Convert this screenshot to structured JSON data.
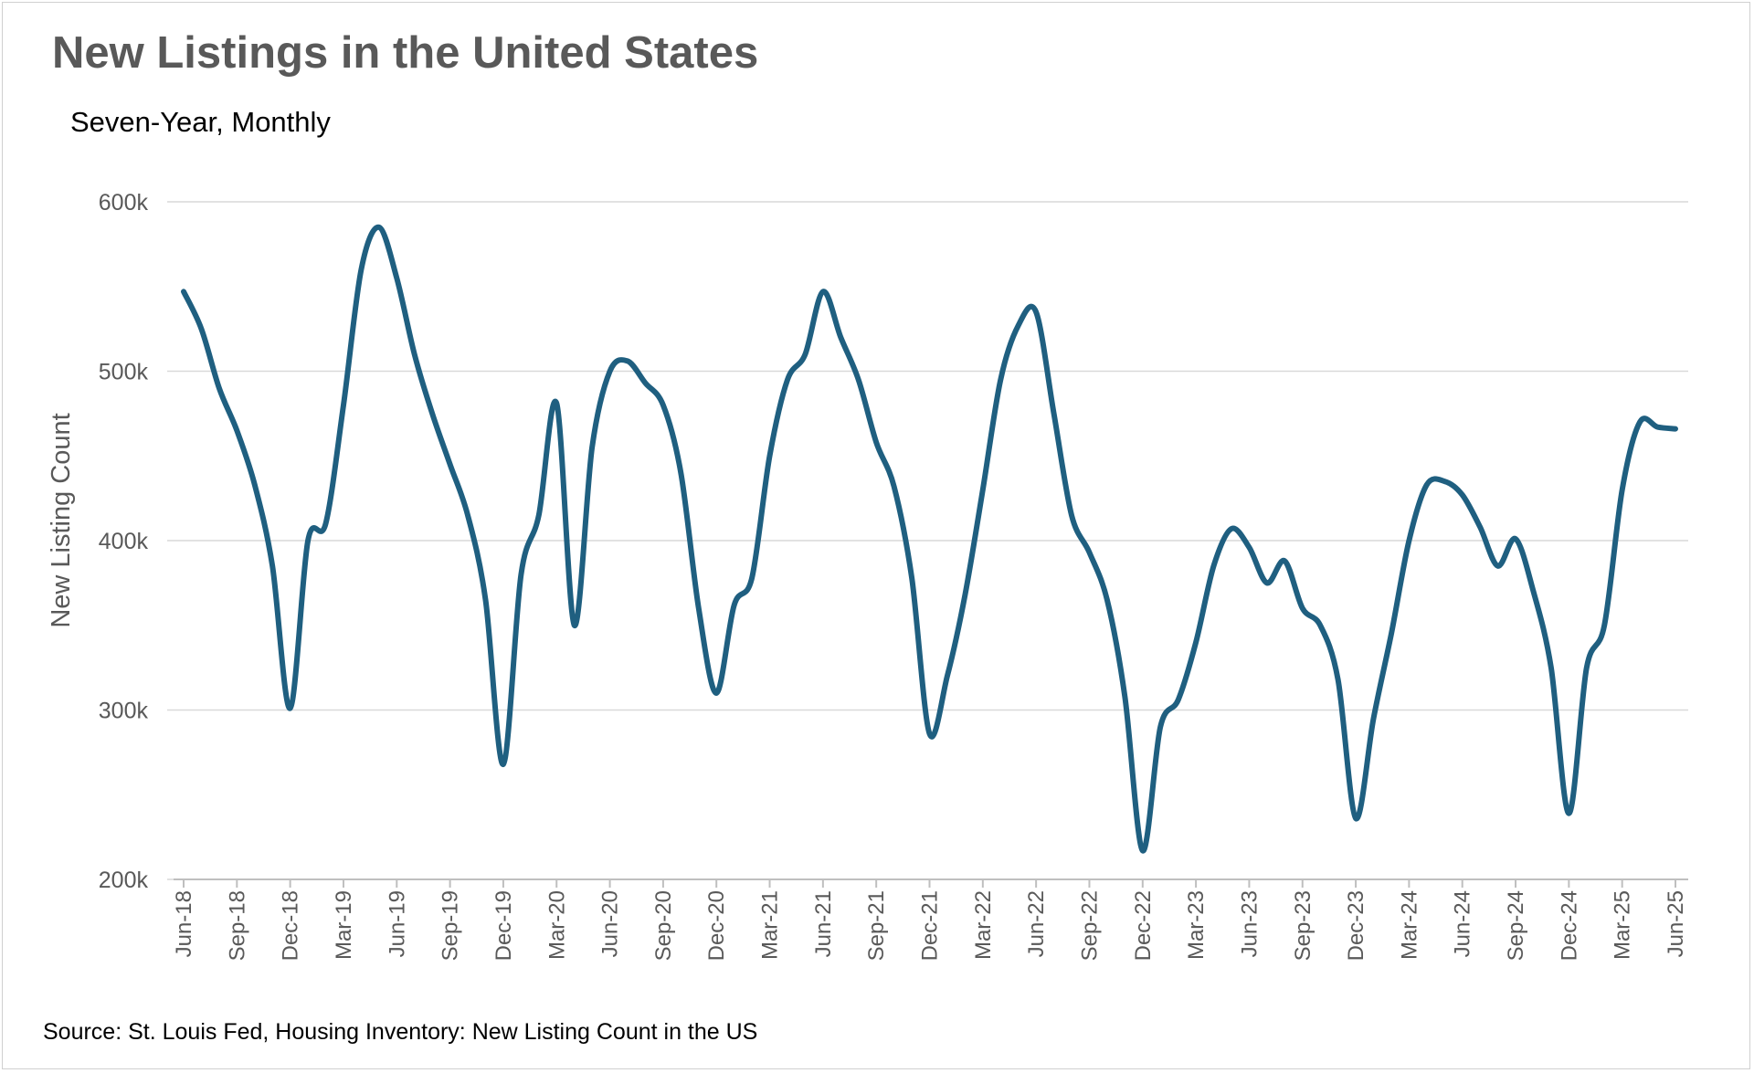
{
  "title": "New Listings in the United States",
  "subtitle": "Seven-Year, Monthly",
  "source": "Source: St. Louis Fed, Housing Inventory: New Listing Count in the US",
  "chart_data": {
    "type": "line",
    "ylabel": "New Listing Count",
    "xlabel": "",
    "ylim": [
      200000,
      600000
    ],
    "y_ticks": [
      200000,
      300000,
      400000,
      500000,
      600000
    ],
    "y_tick_labels": [
      "200k",
      "300k",
      "400k",
      "500k",
      "600k"
    ],
    "x_tick_labels": [
      "Jun-18",
      "Sep-18",
      "Dec-18",
      "Mar-19",
      "Jun-19",
      "Sep-19",
      "Dec-19",
      "Mar-20",
      "Jun-20",
      "Sep-20",
      "Dec-20",
      "Mar-21",
      "Jun-21",
      "Sep-21",
      "Dec-21",
      "Mar-22",
      "Jun-22",
      "Sep-22",
      "Dec-22",
      "Mar-23",
      "Jun-23",
      "Sep-23",
      "Dec-23",
      "Mar-24",
      "Jun-24",
      "Sep-24",
      "Dec-24",
      "Mar-25",
      "Jun-25"
    ],
    "grid": true,
    "line_color": "#1f5f80",
    "grid_color": "#d9d9d9",
    "series": [
      {
        "x": [
          "Jun-18",
          "Jul-18",
          "Aug-18",
          "Sep-18",
          "Oct-18",
          "Nov-18",
          "Dec-18",
          "Jan-19",
          "Feb-19",
          "Mar-19",
          "Apr-19",
          "May-19",
          "Jun-19",
          "Jul-19",
          "Aug-19",
          "Sep-19",
          "Oct-19",
          "Nov-19",
          "Dec-19",
          "Jan-20",
          "Feb-20",
          "Mar-20",
          "Apr-20",
          "May-20",
          "Jun-20",
          "Jul-20",
          "Aug-20",
          "Sep-20",
          "Oct-20",
          "Nov-20",
          "Dec-20",
          "Jan-21",
          "Feb-21",
          "Mar-21",
          "Apr-21",
          "May-21",
          "Jun-21",
          "Jul-21",
          "Aug-21",
          "Sep-21",
          "Oct-21",
          "Nov-21",
          "Dec-21",
          "Jan-22",
          "Feb-22",
          "Mar-22",
          "Apr-22",
          "May-22",
          "Jun-22",
          "Jul-22",
          "Aug-22",
          "Sep-22",
          "Oct-22",
          "Nov-22",
          "Dec-22",
          "Jan-23",
          "Feb-23",
          "Mar-23",
          "Apr-23",
          "May-23",
          "Jun-23",
          "Jul-23",
          "Aug-23",
          "Sep-23",
          "Oct-23",
          "Nov-23",
          "Dec-23",
          "Jan-24",
          "Feb-24",
          "Mar-24",
          "Apr-24",
          "May-24",
          "Jun-24",
          "Jul-24",
          "Aug-24",
          "Sep-24",
          "Oct-24",
          "Nov-24",
          "Dec-24",
          "Jan-25",
          "Feb-25",
          "Mar-25",
          "Apr-25",
          "May-25",
          "Jun-25"
        ],
        "values": [
          547000,
          525000,
          490000,
          465000,
          433000,
          385000,
          301000,
          400000,
          410000,
          480000,
          560000,
          585000,
          555000,
          510000,
          475000,
          445000,
          415000,
          365000,
          268000,
          380000,
          415000,
          481000,
          350000,
          455000,
          500000,
          506000,
          493000,
          480000,
          440000,
          360000,
          310000,
          362000,
          378000,
          450000,
          495000,
          510000,
          547000,
          520000,
          495000,
          458000,
          432000,
          378000,
          286000,
          320000,
          368000,
          430000,
          495000,
          527000,
          535000,
          475000,
          415000,
          393000,
          365000,
          308000,
          217000,
          290000,
          306000,
          340000,
          385000,
          407000,
          396000,
          375000,
          388000,
          360000,
          350000,
          318000,
          236000,
          295000,
          345000,
          400000,
          433000,
          435000,
          427000,
          408000,
          385000,
          401000,
          370000,
          325000,
          239000,
          325000,
          350000,
          430000,
          470000,
          467000,
          466000
        ]
      }
    ]
  }
}
